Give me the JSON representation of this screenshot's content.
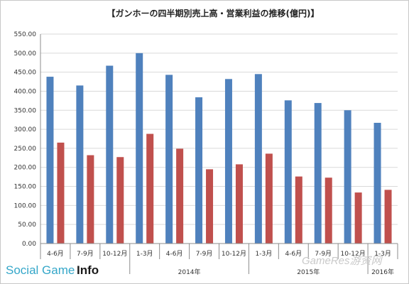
{
  "chart_data": {
    "type": "bar",
    "title": "【ガンホーの四半期別売上高・営業利益の推移(億円)】",
    "categories": [
      "4-6月",
      "7-9月",
      "10-12月",
      "1-3月",
      "4-6月",
      "7-9月",
      "10-12月",
      "1-3月",
      "4-6月",
      "7-9月",
      "10-12月",
      "1-3月"
    ],
    "year_groups": [
      {
        "label": "",
        "start": 0,
        "end": 2
      },
      {
        "label": "2014年",
        "start": 3,
        "end": 6
      },
      {
        "label": "2015年",
        "start": 7,
        "end": 10
      },
      {
        "label": "2016年",
        "start": 11,
        "end": 11
      }
    ],
    "series": [
      {
        "values": [
          438,
          415,
          467,
          500,
          443,
          384,
          432,
          445,
          376,
          369,
          350,
          317
        ],
        "color": "#4f81bd"
      },
      {
        "values": [
          265,
          232,
          227,
          288,
          249,
          195,
          208,
          236,
          176,
          173,
          134,
          141
        ],
        "color": "#c0504d"
      }
    ],
    "ylim": [
      0,
      550
    ],
    "ytick_step": 50,
    "ytick_labels": [
      "0.00",
      "50.00",
      "100.00",
      "150.00",
      "200.00",
      "250.00",
      "300.00",
      "350.00",
      "400.00",
      "450.00",
      "500.00",
      "550.00"
    ],
    "grid": true,
    "legend": "none"
  },
  "watermark": {
    "brand_part1": "Social Game ",
    "brand_part2": "Info",
    "site": "GameRes游资网"
  }
}
